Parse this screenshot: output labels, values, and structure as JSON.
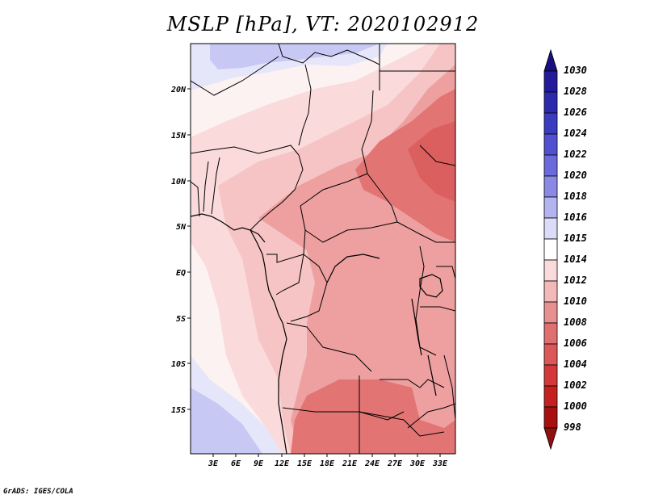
{
  "title": "MSLP [hPa], VT: 2020102912",
  "footer": "GrADS: IGES/COLA",
  "lat_labels": [
    "20N",
    "15N",
    "10N",
    "5N",
    "EQ",
    "5S",
    "10S",
    "15S"
  ],
  "lon_labels": [
    "3E",
    "6E",
    "9E",
    "12E",
    "15E",
    "18E",
    "21E",
    "24E",
    "27E",
    "30E",
    "33E"
  ],
  "colorbar": {
    "levels": [
      "1030",
      "1028",
      "1026",
      "1024",
      "1022",
      "1020",
      "1018",
      "1016",
      "1015",
      "1014",
      "1012",
      "1010",
      "1008",
      "1006",
      "1004",
      "1002",
      "1000",
      "998"
    ],
    "colors": [
      "#1a0e80",
      "#221a9a",
      "#2b2aae",
      "#3a3cc0",
      "#5050d0",
      "#6a6adc",
      "#8a8ae6",
      "#b3b3f0",
      "#dcdcf8",
      "#ffffff",
      "#fadada",
      "#f3b8b8",
      "#e89090",
      "#e07070",
      "#dc5858",
      "#d43838",
      "#c42020",
      "#a81010",
      "#901010"
    ]
  },
  "field_colors": {
    "high2": "#c8c8f4",
    "high1": "#e6e6fa",
    "neutral": "#fdf2f2",
    "p1012": "#fadada",
    "p1010": "#f6c4c4",
    "p1008": "#ee9f9f",
    "p1006": "#e27474",
    "p1004": "#dc5f5f"
  }
}
